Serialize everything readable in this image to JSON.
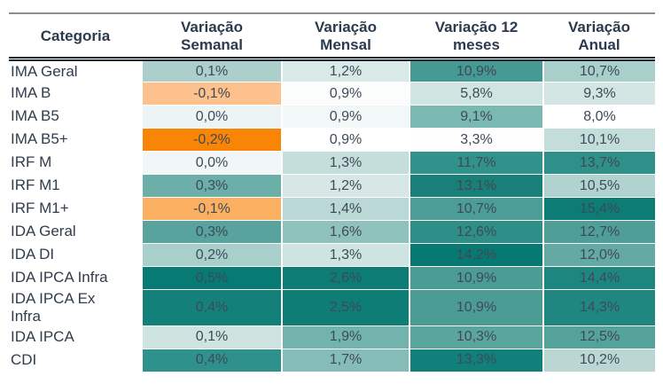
{
  "chart_data": {
    "type": "table",
    "title": "",
    "columns": [
      "Categoria",
      "Variação Semanal",
      "Variação Mensal",
      "Variação 12 meses",
      "Variação Anual"
    ],
    "rows": [
      {
        "category": "IMA Geral",
        "values": [
          "0,1%",
          "1,2%",
          "10,9%",
          "10,7%"
        ]
      },
      {
        "category": "IMA B",
        "values": [
          "-0,1%",
          "0,9%",
          "5,8%",
          "9,3%"
        ]
      },
      {
        "category": "IMA B5",
        "values": [
          "0,0%",
          "0,9%",
          "9,1%",
          "8,0%"
        ]
      },
      {
        "category": "IMA B5+",
        "values": [
          "-0,2%",
          "0,9%",
          "3,3%",
          "10,1%"
        ]
      },
      {
        "category": "IRF M",
        "values": [
          "0,0%",
          "1,3%",
          "11,7%",
          "13,7%"
        ]
      },
      {
        "category": "IRF M1",
        "values": [
          "0,3%",
          "1,2%",
          "13,1%",
          "10,5%"
        ]
      },
      {
        "category": "IRF M1+",
        "values": [
          "-0,1%",
          "1,4%",
          "10,7%",
          "15,4%"
        ]
      },
      {
        "category": "IDA Geral",
        "values": [
          "0,3%",
          "1,6%",
          "12,6%",
          "12,7%"
        ]
      },
      {
        "category": "IDA DI",
        "values": [
          "0,2%",
          "1,3%",
          "14,2%",
          "12,0%"
        ]
      },
      {
        "category": "IDA IPCA Infra",
        "values": [
          "0,5%",
          "2,6%",
          "10,9%",
          "14,4%"
        ]
      },
      {
        "category": "IDA IPCA Ex Infra",
        "values": [
          "0,4%",
          "2,5%",
          "10,9%",
          "14,3%"
        ]
      },
      {
        "category": "IDA IPCA",
        "values": [
          "0,1%",
          "1,9%",
          "10,3%",
          "12,5%"
        ]
      },
      {
        "category": "CDI",
        "values": [
          "0,4%",
          "1,7%",
          "13,3%",
          "10,2%"
        ]
      }
    ]
  },
  "table": {
    "header": {
      "categoria": "Categoria",
      "semanal": "Variação\nSemanal",
      "mensal": "Variação\nMensal",
      "doze_meses": "Variação 12\nmeses",
      "anual": "Variação\nAnual"
    },
    "rows": [
      {
        "category": "IMA Geral",
        "cells": [
          {
            "value": "0,1%",
            "bg": "#adcfcb"
          },
          {
            "value": "1,2%",
            "bg": "#d9e9e7"
          },
          {
            "value": "10,9%",
            "bg": "#459a93"
          },
          {
            "value": "10,7%",
            "bg": "#a9cfcb"
          }
        ]
      },
      {
        "category": "IMA B",
        "cells": [
          {
            "value": "-0,1%",
            "bg": "#fcc18c"
          },
          {
            "value": "0,9%",
            "bg": "#fbfdfd"
          },
          {
            "value": "5,8%",
            "bg": "#cfe5e2"
          },
          {
            "value": "9,3%",
            "bg": "#d3e6e4"
          }
        ]
      },
      {
        "category": "IMA B5",
        "cells": [
          {
            "value": "0,0%",
            "bg": "#edf5f4"
          },
          {
            "value": "0,9%",
            "bg": "#f2f8f7"
          },
          {
            "value": "9,1%",
            "bg": "#7ab8b2"
          },
          {
            "value": "8,0%",
            "bg": "#ffffff"
          }
        ]
      },
      {
        "category": "IMA B5+",
        "cells": [
          {
            "value": "-0,2%",
            "bg": "#f98506"
          },
          {
            "value": "0,9%",
            "bg": "#ffffff"
          },
          {
            "value": "3,3%",
            "bg": "#fefefe"
          },
          {
            "value": "10,1%",
            "bg": "#c2ddda"
          }
        ]
      },
      {
        "category": "IRF M",
        "cells": [
          {
            "value": "0,0%",
            "bg": "#f0f7f6"
          },
          {
            "value": "1,3%",
            "bg": "#c5dedb"
          },
          {
            "value": "11,7%",
            "bg": "#31928b"
          },
          {
            "value": "13,7%",
            "bg": "#2e9089"
          }
        ]
      },
      {
        "category": "IRF M1",
        "cells": [
          {
            "value": "0,3%",
            "bg": "#6caea8"
          },
          {
            "value": "1,2%",
            "bg": "#d6e7e5"
          },
          {
            "value": "13,1%",
            "bg": "#188078"
          },
          {
            "value": "10,5%",
            "bg": "#b0d3cf"
          }
        ]
      },
      {
        "category": "IRF M1+",
        "cells": [
          {
            "value": "-0,1%",
            "bg": "#fbaf60"
          },
          {
            "value": "1,4%",
            "bg": "#bad8d5"
          },
          {
            "value": "10,7%",
            "bg": "#4c9d97"
          },
          {
            "value": "15,4%",
            "bg": "#0c7c75"
          }
        ]
      },
      {
        "category": "IDA Geral",
        "cells": [
          {
            "value": "0,3%",
            "bg": "#58a39d"
          },
          {
            "value": "1,6%",
            "bg": "#90c2bd"
          },
          {
            "value": "12,6%",
            "bg": "#2d8f88"
          },
          {
            "value": "12,7%",
            "bg": "#4f9e97"
          }
        ]
      },
      {
        "category": "IDA DI",
        "cells": [
          {
            "value": "0,2%",
            "bg": "#a9cfcb"
          },
          {
            "value": "1,3%",
            "bg": "#cde4e1"
          },
          {
            "value": "14,2%",
            "bg": "#067a72"
          },
          {
            "value": "12,0%",
            "bg": "#64a9a3"
          }
        ]
      },
      {
        "category": "IDA IPCA Infra",
        "cells": [
          {
            "value": "0,5%",
            "bg": "#077a73"
          },
          {
            "value": "2,6%",
            "bg": "#0c7c74"
          },
          {
            "value": "10,9%",
            "bg": "#4a9c95"
          },
          {
            "value": "14,4%",
            "bg": "#1d867f"
          }
        ]
      },
      {
        "category": "IDA IPCA Ex\nInfra",
        "cells": [
          {
            "value": "0,4%",
            "bg": "#13817a"
          },
          {
            "value": "2,5%",
            "bg": "#0e7d76"
          },
          {
            "value": "10,9%",
            "bg": "#4a9c95"
          },
          {
            "value": "14,3%",
            "bg": "#1f877f"
          }
        ]
      },
      {
        "category": "IDA IPCA",
        "cells": [
          {
            "value": "0,1%",
            "bg": "#cde4e1"
          },
          {
            "value": "1,9%",
            "bg": "#73b3ad"
          },
          {
            "value": "10,3%",
            "bg": "#5ba59f"
          },
          {
            "value": "12,5%",
            "bg": "#55a29b"
          }
        ]
      },
      {
        "category": "CDI",
        "cells": [
          {
            "value": "0,4%",
            "bg": "#2f918b"
          },
          {
            "value": "1,7%",
            "bg": "#86bcb7"
          },
          {
            "value": "13,3%",
            "bg": "#11807a"
          },
          {
            "value": "10,2%",
            "bg": "#bad7d4"
          }
        ]
      }
    ]
  },
  "colors": {
    "positive_strong_teal": "#067a72",
    "positive_light_teal": "#cde4e1",
    "negative_strong_orange": "#f98506",
    "negative_light_orange": "#fcc18c",
    "header_text": "#2c3a4d",
    "body_text": "#3e4a58",
    "top_rule": "#8d8d8d",
    "header_rule": "#1c2630"
  }
}
